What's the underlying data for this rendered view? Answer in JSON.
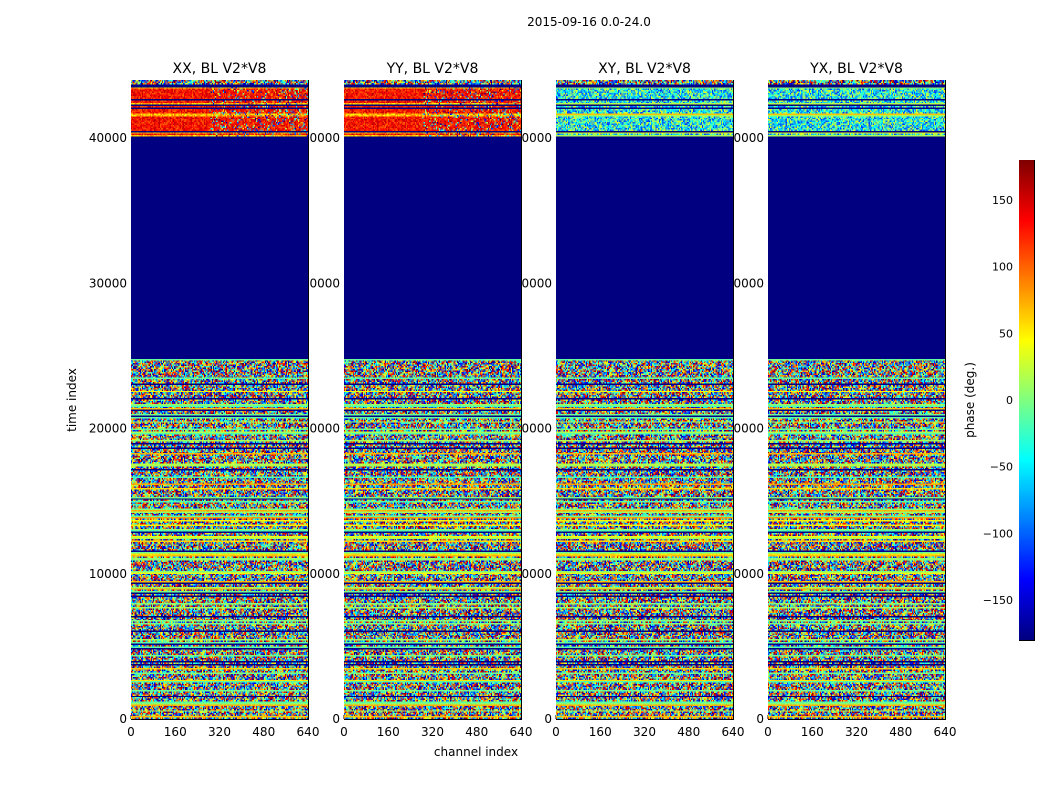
{
  "figure_title": "2015-09-16 0.0-24.0",
  "chart_data": {
    "type": "heatmap",
    "panels": [
      {
        "title": "XX, BL V2*V8",
        "pol": "XX"
      },
      {
        "title": "YY, BL V2*V8",
        "pol": "YY"
      },
      {
        "title": "XY, BL V2*V8",
        "pol": "XY"
      },
      {
        "title": "YX, BL V2*V8",
        "pol": "YX"
      }
    ],
    "xlabel": "channel index",
    "ylabel": "time index",
    "xlim": [
      0,
      640
    ],
    "ylim": [
      0,
      44000
    ],
    "x_ticks": [
      0,
      160,
      320,
      480,
      640
    ],
    "y_ticks": [
      0,
      10000,
      20000,
      30000,
      40000
    ],
    "constant_region": {
      "y_range": [
        24800,
        40000
      ],
      "value": -180,
      "description": "flagged / constant block"
    },
    "colorbar": {
      "label": "phase (deg.)",
      "range": [
        -180,
        180
      ],
      "ticks": [
        -150,
        -100,
        -50,
        0,
        50,
        100,
        150
      ],
      "tick_labels": [
        "−150",
        "−100",
        "−50",
        "0",
        "50",
        "100",
        "150"
      ],
      "colormap": "jet"
    }
  }
}
